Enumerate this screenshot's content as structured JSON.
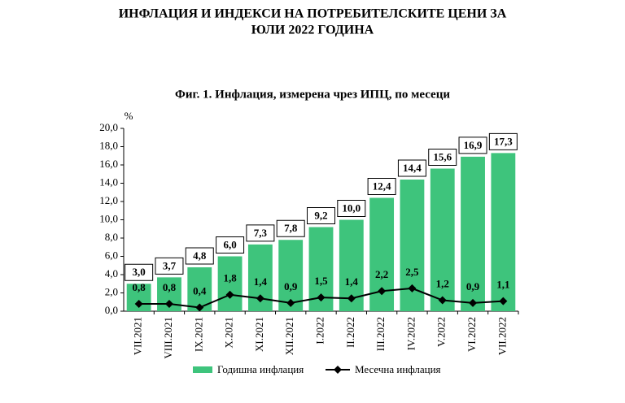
{
  "header": {
    "title_lines": [
      "ИНФЛАЦИЯ И ИНДЕКСИ НА ПОТРЕБИТЕЛСКИТЕ ЦЕНИ ЗА",
      "ЮЛИ 2022 ГОДИНА"
    ]
  },
  "chart_data": {
    "type": "combo",
    "title": "Фиг. 1. Инфлация, измерена чрез ИПЦ, по месеци",
    "y_label": "%",
    "categories": [
      "VII.2021",
      "VIII.2021",
      "IX.2021",
      "X.2021",
      "XI.2021",
      "XII.2021",
      "I.2022",
      "II.2022",
      "III.2022",
      "IV.2022",
      "V.2022",
      "VI.2022",
      "VII.2022"
    ],
    "series": [
      {
        "name": "Годишна инфлация",
        "type": "bar",
        "color": "#3ec47c",
        "values": [
          3.0,
          3.7,
          4.8,
          6.0,
          7.3,
          7.8,
          9.2,
          10.0,
          12.4,
          14.4,
          15.6,
          16.9,
          17.3
        ],
        "value_labels": [
          "3,0",
          "3,7",
          "4,8",
          "6,0",
          "7,3",
          "7,8",
          "9,2",
          "10,0",
          "12,4",
          "14,4",
          "15,6",
          "16,9",
          "17,3"
        ]
      },
      {
        "name": "Месечна инфлация",
        "type": "line",
        "color": "#000000",
        "values": [
          0.8,
          0.8,
          0.4,
          1.8,
          1.4,
          0.9,
          1.5,
          1.4,
          2.2,
          2.5,
          1.2,
          0.9,
          1.1
        ],
        "value_labels": [
          "0,8",
          "0,8",
          "0,4",
          "1,8",
          "1,4",
          "0,9",
          "1,5",
          "1,4",
          "2,2",
          "2,5",
          "1,2",
          "0,9",
          "1,1"
        ]
      }
    ],
    "ylim": [
      0,
      20
    ],
    "yticks": [
      {
        "value": 0,
        "label": "0,0"
      },
      {
        "value": 2,
        "label": "2,0"
      },
      {
        "value": 4,
        "label": "4,0"
      },
      {
        "value": 6,
        "label": "6,0"
      },
      {
        "value": 8,
        "label": "8,0"
      },
      {
        "value": 10,
        "label": "10,0"
      },
      {
        "value": 12,
        "label": "12,0"
      },
      {
        "value": 14,
        "label": "14,0"
      },
      {
        "value": 16,
        "label": "16,0"
      },
      {
        "value": 18,
        "label": "18,0"
      },
      {
        "value": 20,
        "label": "20,0"
      }
    ],
    "legend": "bottom"
  }
}
